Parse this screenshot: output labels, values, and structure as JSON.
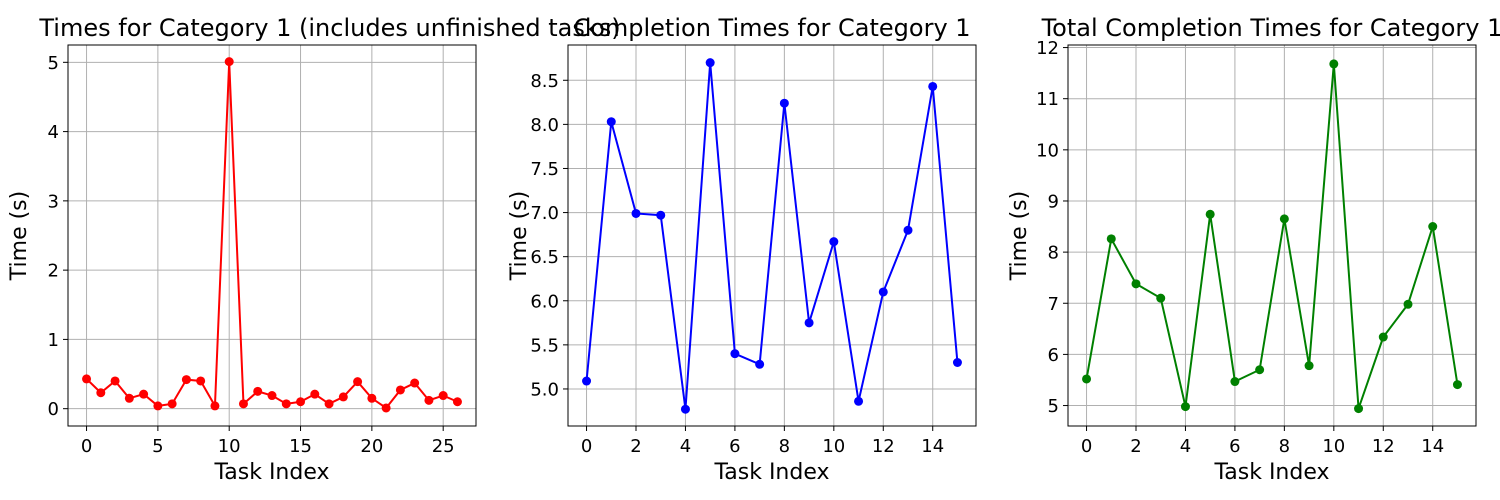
{
  "chart_data": [
    {
      "type": "line",
      "title": "Times for Category 1 (includes unfinished tasks)",
      "xlabel": "Task Index",
      "ylabel": "Time (s)",
      "color": "#ff0000",
      "xlim": [
        -1.3,
        27.3
      ],
      "ylim": [
        -0.25,
        5.25
      ],
      "xticks": [
        0,
        5,
        10,
        15,
        20,
        25
      ],
      "yticks": [
        0,
        1,
        2,
        3,
        4,
        5
      ],
      "grid": true,
      "x": [
        0,
        1,
        2,
        3,
        4,
        5,
        6,
        7,
        8,
        9,
        10,
        11,
        12,
        13,
        14,
        15,
        16,
        17,
        18,
        19,
        20,
        21,
        22,
        23,
        24,
        25,
        26
      ],
      "values": [
        0.43,
        0.23,
        0.4,
        0.15,
        0.21,
        0.04,
        0.07,
        0.42,
        0.4,
        0.04,
        5.01,
        0.07,
        0.25,
        0.19,
        0.07,
        0.1,
        0.21,
        0.07,
        0.17,
        0.39,
        0.15,
        0.01,
        0.27,
        0.37,
        0.12,
        0.19,
        0.1
      ]
    },
    {
      "type": "line",
      "title": "Completion Times for Category 1",
      "xlabel": "Task Index",
      "ylabel": "Time (s)",
      "color": "#0000ff",
      "xlim": [
        -0.75,
        15.75
      ],
      "ylim": [
        4.58,
        8.9
      ],
      "xticks": [
        0,
        2,
        4,
        6,
        8,
        10,
        12,
        14
      ],
      "yticks": [
        5.0,
        5.5,
        6.0,
        6.5,
        7.0,
        7.5,
        8.0,
        8.5
      ],
      "ytick_labels": [
        "5.0",
        "5.5",
        "6.0",
        "6.5",
        "7.0",
        "7.5",
        "8.0",
        "8.5"
      ],
      "grid": true,
      "x": [
        0,
        1,
        2,
        3,
        4,
        5,
        6,
        7,
        8,
        9,
        10,
        11,
        12,
        13,
        14,
        15
      ],
      "values": [
        5.09,
        8.03,
        6.99,
        6.97,
        4.77,
        8.7,
        5.4,
        5.28,
        8.24,
        5.75,
        6.67,
        4.86,
        6.1,
        6.8,
        8.43,
        5.3
      ]
    },
    {
      "type": "line",
      "title": "Total Completion Times for Category 1",
      "xlabel": "Task Index",
      "ylabel": "Time (s)",
      "color": "#008000",
      "xlim": [
        -0.75,
        15.75
      ],
      "ylim": [
        4.6,
        12.05
      ],
      "xticks": [
        0,
        2,
        4,
        6,
        8,
        10,
        12,
        14
      ],
      "yticks": [
        5,
        6,
        7,
        8,
        9,
        10,
        11,
        12
      ],
      "grid": true,
      "x": [
        0,
        1,
        2,
        3,
        4,
        5,
        6,
        7,
        8,
        9,
        10,
        11,
        12,
        13,
        14,
        15
      ],
      "values": [
        5.52,
        8.26,
        7.38,
        7.1,
        4.98,
        8.74,
        5.47,
        5.7,
        8.65,
        5.78,
        11.68,
        4.94,
        6.34,
        6.98,
        8.5,
        5.41
      ]
    }
  ]
}
